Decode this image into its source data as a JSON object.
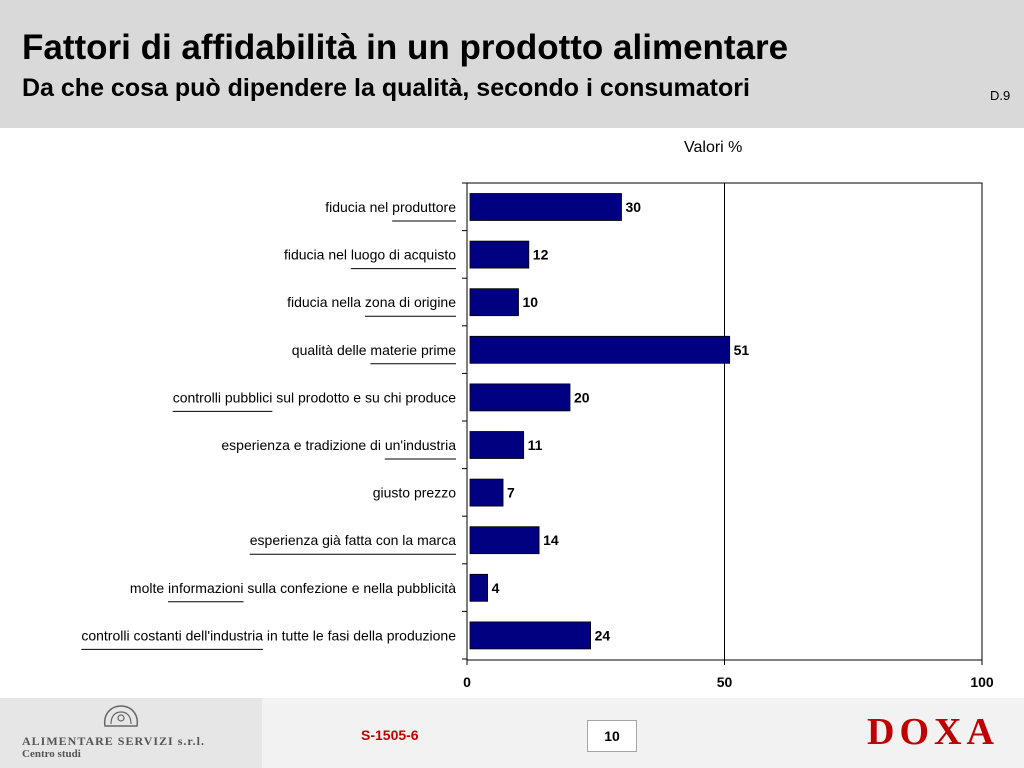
{
  "header": {
    "title": "Fattori di affidabilità in un prodotto alimentare",
    "subtitle": "Da che cosa può dipendere la qualità, secondo i consumatori",
    "code": "D.9"
  },
  "chart_data": {
    "type": "bar",
    "orientation": "horizontal",
    "unit_label": "Valori %",
    "categories": [
      "fiducia nel produttore",
      "fiducia nel luogo di acquisto",
      "fiducia nella zona di origine",
      "qualità delle materie prime",
      "controlli pubblici sul prodotto e su chi produce",
      "esperienza e tradizione di un'industria",
      "giusto prezzo",
      "esperienza già fatta con la marca",
      "molte informazioni sulla confezione e nella pubblicità",
      "controlli costanti dell'industria in tutte le fasi della produzione"
    ],
    "underlined_terms": [
      "produttore",
      "luogo di acquisto",
      "zona di origine",
      "materie prime",
      "controlli pubblici",
      "un'industria",
      "",
      "esperienza già fatta con la marca",
      "informazioni",
      "controlli costanti dell'industria"
    ],
    "values": [
      30,
      12,
      10,
      51,
      20,
      11,
      7,
      14,
      4,
      24
    ],
    "xlim": [
      0,
      100
    ],
    "xticks": [
      0,
      50,
      100
    ],
    "bar_color": "#000080",
    "reference_line": 50,
    "grid": false
  },
  "footer": {
    "company_name": "ALIMENTARE SERVIZI s.r.l.",
    "company_sub": "Centro studi",
    "survey_code": "S-1505-6",
    "page_number": "10",
    "brand": "DOXA"
  }
}
